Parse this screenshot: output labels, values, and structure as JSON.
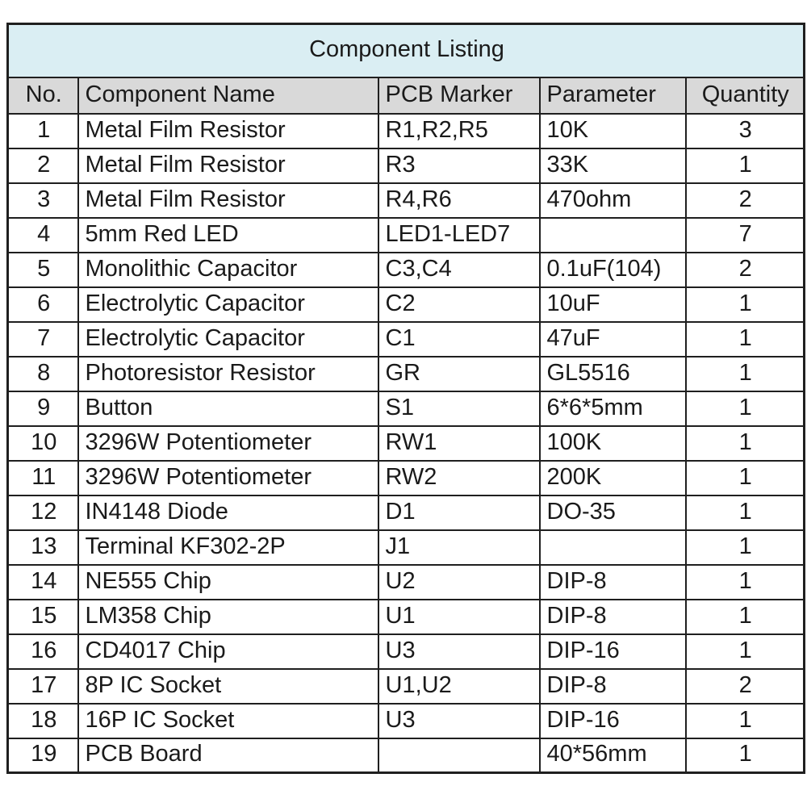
{
  "title": "Component Listing",
  "table": {
    "columns": [
      "No.",
      "Component Name",
      "PCB Marker",
      "Parameter",
      "Quantity"
    ],
    "rows": [
      [
        "1",
        "Metal Film Resistor",
        "R1,R2,R5",
        "10K",
        "3"
      ],
      [
        "2",
        "Metal Film Resistor",
        "R3",
        "33K",
        "1"
      ],
      [
        "3",
        "Metal Film Resistor",
        "R4,R6",
        "470ohm",
        "2"
      ],
      [
        "4",
        "5mm Red LED",
        "LED1-LED7",
        "",
        "7"
      ],
      [
        "5",
        "Monolithic Capacitor",
        "C3,C4",
        "0.1uF(104)",
        "2"
      ],
      [
        "6",
        "Electrolytic Capacitor",
        "C2",
        "10uF",
        "1"
      ],
      [
        "7",
        "Electrolytic Capacitor",
        "C1",
        "47uF",
        "1"
      ],
      [
        "8",
        "Photoresistor Resistor",
        "GR",
        "GL5516",
        "1"
      ],
      [
        "9",
        "Button",
        "S1",
        "6*6*5mm",
        "1"
      ],
      [
        "10",
        "3296W Potentiometer",
        "RW1",
        "100K",
        "1"
      ],
      [
        "11",
        "3296W Potentiometer",
        "RW2",
        "200K",
        "1"
      ],
      [
        "12",
        "IN4148 Diode",
        "D1",
        "DO-35",
        "1"
      ],
      [
        "13",
        "Terminal KF302-2P",
        "J1",
        "",
        "1"
      ],
      [
        "14",
        "NE555 Chip",
        "U2",
        "DIP-8",
        "1"
      ],
      [
        "15",
        "LM358 Chip",
        "U1",
        "DIP-8",
        "1"
      ],
      [
        "16",
        "CD4017 Chip",
        "U3",
        "DIP-16",
        "1"
      ],
      [
        "17",
        "8P IC Socket",
        "U1,U2",
        "DIP-8",
        "2"
      ],
      [
        "18",
        "16P IC Socket",
        "U3",
        "DIP-16",
        "1"
      ],
      [
        "19",
        "PCB Board",
        "",
        "40*56mm",
        "1"
      ]
    ]
  },
  "colors": {
    "title_background": "#daeef3",
    "header_background": "#d9d9d9",
    "border": "#1f1f1f",
    "text": "#1a1a1a"
  }
}
